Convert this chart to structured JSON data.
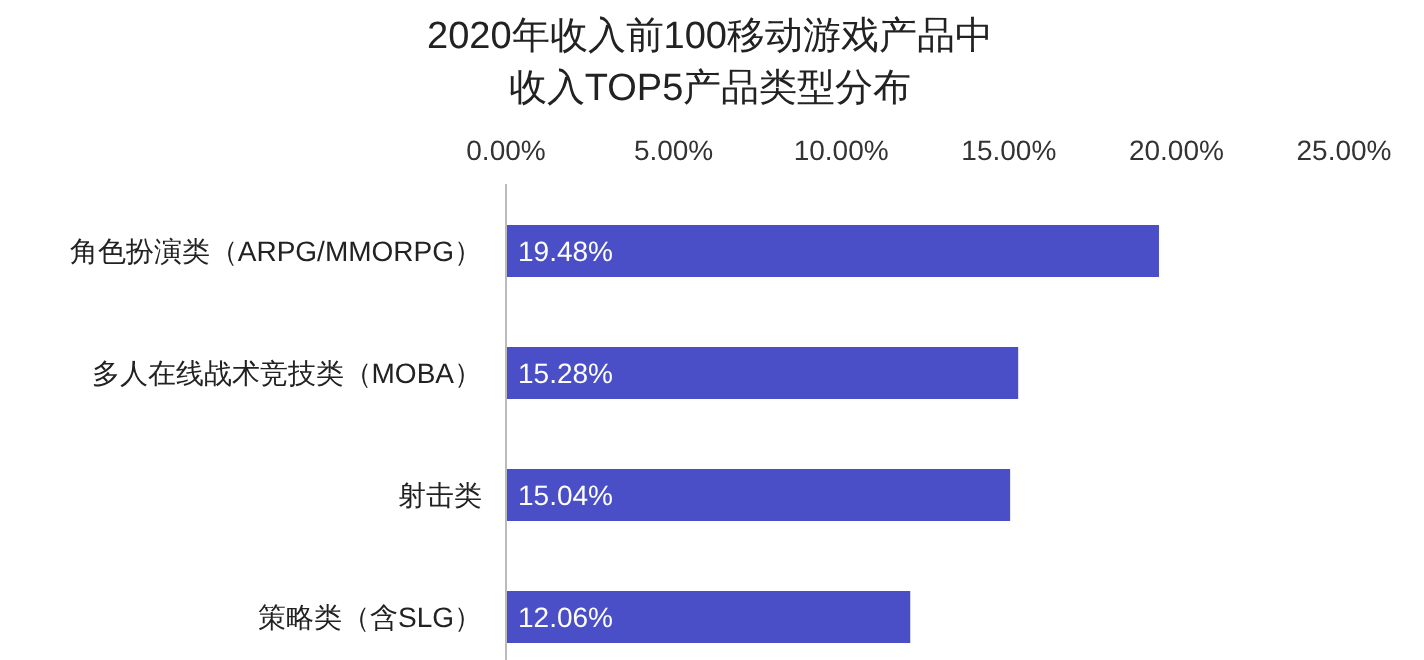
{
  "chart_data": {
    "type": "bar",
    "orientation": "horizontal",
    "title": "2020年收入前100移动游戏产品中收入TOP5产品类型分布",
    "categories": [
      "角色扮演类（ARPG/MMORPG）",
      "多人在线战术竞技类（MOBA）",
      "射击类",
      "策略类（含SLG）"
    ],
    "values": [
      19.48,
      15.28,
      15.04,
      12.06
    ],
    "value_labels": [
      "19.48%",
      "15.28%",
      "15.04%",
      "12.06%"
    ],
    "color": "#4a4fc8",
    "xlim": [
      0,
      25
    ],
    "xticks": [
      {
        "value": 0,
        "label": "0.00%"
      },
      {
        "value": 5,
        "label": "5.00%"
      },
      {
        "value": 10,
        "label": "10.00%"
      },
      {
        "value": 15,
        "label": "15.00%"
      },
      {
        "value": 20,
        "label": "20.00%"
      },
      {
        "value": 25,
        "label": "25.00%"
      }
    ],
    "grid": false
  }
}
